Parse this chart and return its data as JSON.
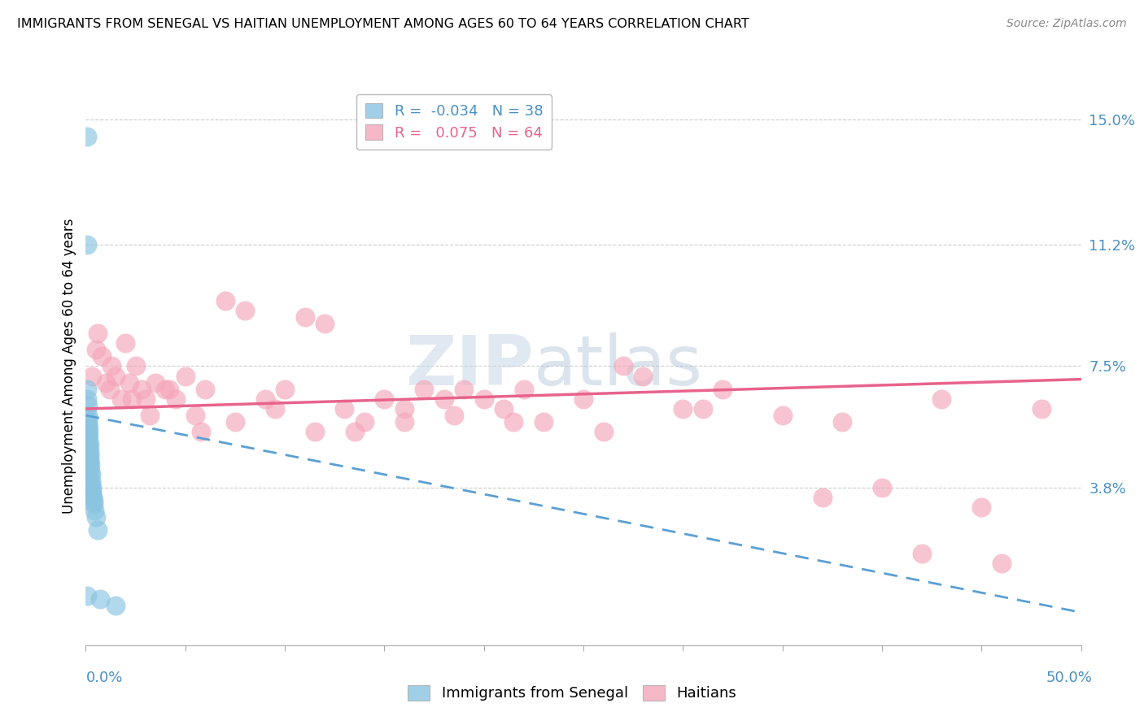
{
  "title": "IMMIGRANTS FROM SENEGAL VS HAITIAN UNEMPLOYMENT AMONG AGES 60 TO 64 YEARS CORRELATION CHART",
  "source": "Source: ZipAtlas.com",
  "ylabel": "Unemployment Among Ages 60 to 64 years",
  "xlim": [
    0,
    50
  ],
  "ylim": [
    -1,
    16
  ],
  "yticks": [
    3.8,
    7.5,
    11.2,
    15.0
  ],
  "ytick_labels": [
    "3.8%",
    "7.5%",
    "11.2%",
    "15.0%"
  ],
  "legend_blue_R": "-0.034",
  "legend_blue_N": "38",
  "legend_pink_R": "0.075",
  "legend_pink_N": "64",
  "legend_blue_label": "Immigrants from Senegal",
  "legend_pink_label": "Haitians",
  "blue_color": "#89c4e1",
  "pink_color": "#f4a7b9",
  "blue_line_color": "#5a9fd4",
  "pink_line_color": "#e8638c",
  "background_color": "#ffffff",
  "senegal_x": [
    0.05,
    0.05,
    0.08,
    0.08,
    0.08,
    0.1,
    0.1,
    0.1,
    0.12,
    0.12,
    0.12,
    0.12,
    0.15,
    0.15,
    0.15,
    0.15,
    0.18,
    0.18,
    0.18,
    0.2,
    0.2,
    0.2,
    0.22,
    0.22,
    0.25,
    0.25,
    0.28,
    0.3,
    0.3,
    0.32,
    0.35,
    0.38,
    0.4,
    0.45,
    0.5,
    0.6,
    0.7,
    1.5
  ],
  "senegal_y": [
    14.5,
    11.2,
    6.8,
    6.5,
    0.5,
    6.3,
    6.0,
    5.8,
    5.9,
    5.7,
    5.5,
    5.3,
    5.6,
    5.4,
    5.2,
    5.0,
    5.1,
    4.9,
    4.7,
    4.8,
    4.6,
    4.4,
    4.5,
    4.3,
    4.2,
    4.0,
    3.9,
    3.8,
    3.7,
    3.6,
    3.5,
    3.4,
    3.3,
    3.1,
    2.9,
    2.5,
    0.4,
    0.2
  ],
  "haitian_x": [
    0.3,
    0.5,
    0.8,
    1.0,
    1.2,
    1.5,
    1.8,
    2.0,
    2.2,
    2.5,
    2.8,
    3.0,
    3.5,
    4.0,
    4.5,
    5.0,
    5.5,
    6.0,
    7.0,
    8.0,
    9.0,
    10.0,
    11.0,
    12.0,
    13.0,
    14.0,
    15.0,
    16.0,
    17.0,
    18.0,
    19.0,
    20.0,
    21.0,
    22.0,
    23.0,
    25.0,
    27.0,
    28.0,
    30.0,
    32.0,
    35.0,
    38.0,
    40.0,
    43.0,
    45.0,
    48.0,
    0.6,
    1.3,
    2.3,
    3.2,
    4.2,
    5.8,
    7.5,
    9.5,
    11.5,
    13.5,
    16.0,
    18.5,
    21.5,
    26.0,
    31.0,
    37.0,
    42.0,
    46.0
  ],
  "haitian_y": [
    7.2,
    8.0,
    7.8,
    7.0,
    6.8,
    7.2,
    6.5,
    8.2,
    7.0,
    7.5,
    6.8,
    6.5,
    7.0,
    6.8,
    6.5,
    7.2,
    6.0,
    6.8,
    9.5,
    9.2,
    6.5,
    6.8,
    9.0,
    8.8,
    6.2,
    5.8,
    6.5,
    6.2,
    6.8,
    6.5,
    6.8,
    6.5,
    6.2,
    6.8,
    5.8,
    6.5,
    7.5,
    7.2,
    6.2,
    6.8,
    6.0,
    5.8,
    3.8,
    6.5,
    3.2,
    6.2,
    8.5,
    7.5,
    6.5,
    6.0,
    6.8,
    5.5,
    5.8,
    6.2,
    5.5,
    5.5,
    5.8,
    6.0,
    5.8,
    5.5,
    6.2,
    3.5,
    1.8,
    1.5
  ],
  "blue_trendline_x": [
    0,
    50
  ],
  "blue_trendline_y_start": 6.0,
  "blue_trendline_slope": -0.12,
  "pink_trendline_x": [
    0,
    50
  ],
  "pink_trendline_y_start": 6.2,
  "pink_trendline_slope": 0.018
}
